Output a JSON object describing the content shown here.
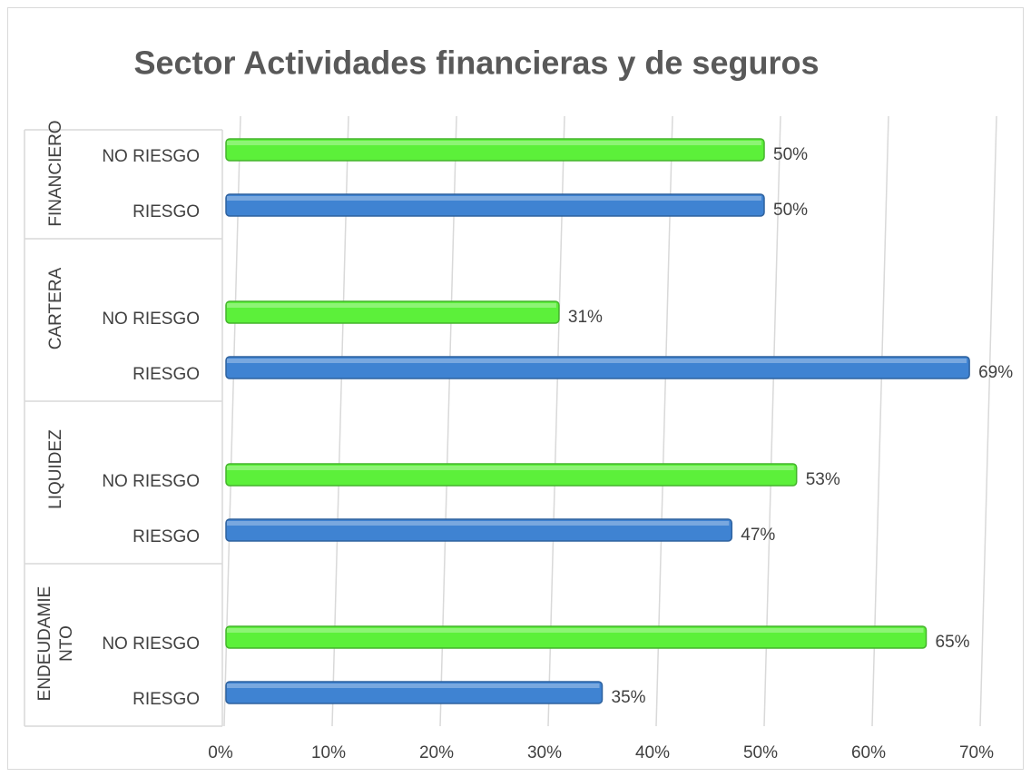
{
  "chart_data": {
    "type": "bar",
    "orientation": "horizontal",
    "title": "Sector Actividades financieras y de seguros",
    "categories": [
      "FINANCIERO",
      "CARTERA",
      "LIQUIDEZ",
      "ENDEUDAMIENTO"
    ],
    "series": [
      {
        "name": "NO RIESGO",
        "color": "#5cf03a",
        "values": [
          50,
          31,
          53,
          65
        ],
        "value_labels": [
          "50%",
          "31%",
          "53%",
          "65%"
        ]
      },
      {
        "name": "RIESGO",
        "color": "#3f83d2",
        "values": [
          50,
          69,
          47,
          35
        ],
        "value_labels": [
          "50%",
          "69%",
          "47%",
          "35%"
        ]
      }
    ],
    "xlim": [
      0,
      70
    ],
    "xticks": [
      {
        "value": 0,
        "label": "0%"
      },
      {
        "value": 10,
        "label": "10%"
      },
      {
        "value": 20,
        "label": "20%"
      },
      {
        "value": 30,
        "label": "30%"
      },
      {
        "value": 40,
        "label": "40%"
      },
      {
        "value": 50,
        "label": "50%"
      },
      {
        "value": 60,
        "label": "60%"
      },
      {
        "value": 70,
        "label": "70%"
      }
    ],
    "grid": true
  }
}
